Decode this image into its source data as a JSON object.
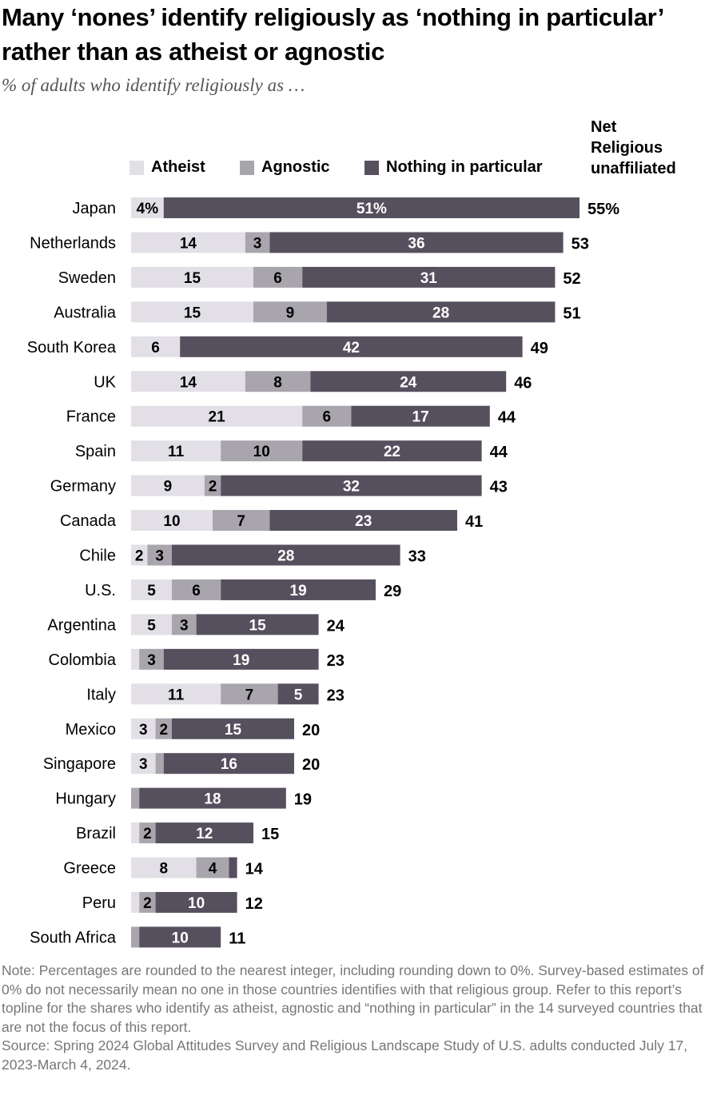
{
  "title": "Many ‘nones’ identify religiously as ‘nothing in particular’ rather than as atheist or agnostic",
  "subtitle": "% of adults who identify religiously as …",
  "net_header": "Net Religious unaffiliated",
  "legend": [
    {
      "label": "Atheist",
      "color": "#e2e0e6"
    },
    {
      "label": "Agnostic",
      "color": "#a9a5ad"
    },
    {
      "label": "Nothing in particular",
      "color": "#56505e"
    }
  ],
  "note": "Note: Percentages are rounded to the nearest integer, including rounding down to 0%. Survey-based estimates of 0% do not necessarily mean no one in those countries identifies with that religious group. Refer to this report’s topline for the shares who identify as atheist, agnostic and “nothing in particular” in the 14 surveyed countries that are not the focus of this report.",
  "source": "Source: Spring 2024 Global Attitudes Survey and Religious Landscape Study of U.S. adults conducted July 17, 2023-March 4, 2024.",
  "chart_data": {
    "type": "bar",
    "orientation": "horizontal",
    "stacked": true,
    "title": "Many ‘nones’ identify religiously as ‘nothing in particular’ rather than as atheist or agnostic",
    "subtitle": "% of adults who identify religiously as …",
    "unit": "%",
    "categories": [
      "Japan",
      "Netherlands",
      "Sweden",
      "Australia",
      "South Korea",
      "UK",
      "France",
      "Spain",
      "Germany",
      "Canada",
      "Chile",
      "U.S.",
      "Argentina",
      "Colombia",
      "Italy",
      "Mexico",
      "Singapore",
      "Hungary",
      "Brazil",
      "Greece",
      "Peru",
      "South Africa"
    ],
    "series": [
      {
        "name": "Atheist",
        "color": "#e2e0e6",
        "text_color": "#000000",
        "values": [
          4,
          14,
          15,
          15,
          6,
          14,
          21,
          11,
          9,
          10,
          2,
          5,
          5,
          1,
          11,
          3,
          3,
          0,
          1,
          8,
          1,
          0
        ],
        "labels": [
          "4%",
          "14",
          "15",
          "15",
          "6",
          "14",
          "21",
          "11",
          "9",
          "10",
          "2",
          "5",
          "5",
          "",
          "11",
          "3",
          "3",
          "",
          "",
          "8",
          "",
          ""
        ]
      },
      {
        "name": "Agnostic",
        "color": "#a9a5ad",
        "text_color": "#000000",
        "values": [
          0,
          3,
          6,
          9,
          0,
          8,
          6,
          10,
          2,
          7,
          3,
          6,
          3,
          3,
          7,
          2,
          1,
          1,
          2,
          4,
          2,
          1
        ],
        "labels": [
          "",
          "3",
          "6",
          "9",
          "",
          "8",
          "6",
          "10",
          "2",
          "7",
          "3",
          "6",
          "3",
          "3",
          "7",
          "2",
          "",
          "",
          "2",
          "4",
          "2",
          ""
        ]
      },
      {
        "name": "Nothing in particular",
        "color": "#56505e",
        "text_color": "#ffffff",
        "values": [
          51,
          36,
          31,
          28,
          42,
          24,
          17,
          22,
          32,
          23,
          28,
          19,
          15,
          19,
          5,
          15,
          16,
          18,
          12,
          1,
          10,
          10
        ],
        "labels": [
          "51%",
          "36",
          "31",
          "28",
          "42",
          "24",
          "17",
          "22",
          "32",
          "23",
          "28",
          "19",
          "15",
          "19",
          "5",
          "15",
          "16",
          "18",
          "12",
          "",
          "10",
          "10"
        ]
      }
    ],
    "net": {
      "label": "Net Religious unaffiliated",
      "values": [
        55,
        53,
        52,
        51,
        49,
        46,
        44,
        44,
        43,
        41,
        33,
        29,
        24,
        23,
        23,
        20,
        20,
        19,
        15,
        14,
        12,
        11
      ],
      "labels": [
        "55%",
        "53",
        "52",
        "51",
        "49",
        "46",
        "44",
        "44",
        "43",
        "41",
        "33",
        "29",
        "24",
        "23",
        "23",
        "20",
        "20",
        "19",
        "15",
        "14",
        "12",
        "11"
      ]
    },
    "xlim": [
      0,
      55
    ],
    "grid": false,
    "legend_position": "top"
  }
}
